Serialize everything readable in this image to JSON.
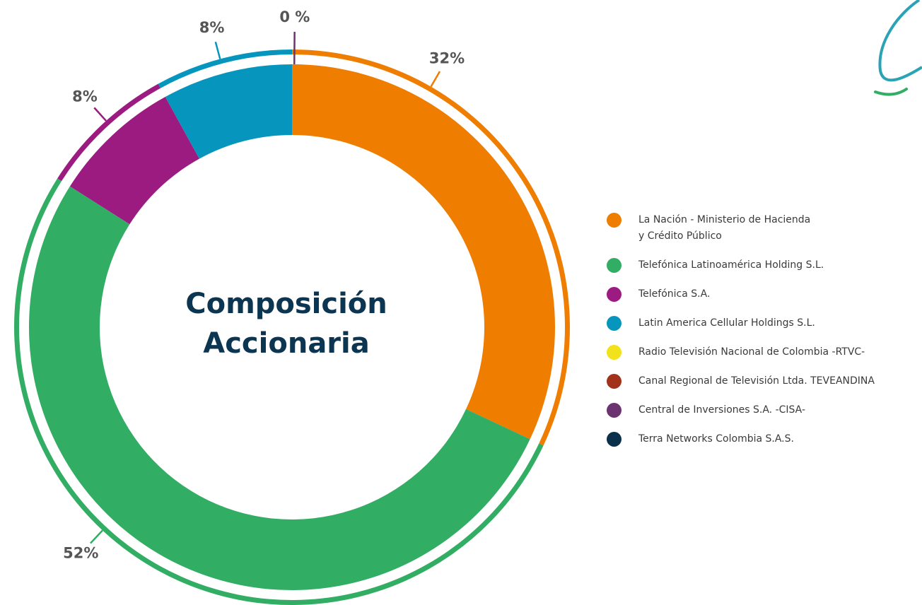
{
  "chart_data": {
    "type": "donut",
    "title": [
      "Composición",
      "Accionaria"
    ],
    "categories": [
      "La Nación - Ministerio de Hacienda\ny Crédito Público",
      "Telefónica Latinoamérica Holding S.L.",
      "Telefónica S.A.",
      "Latin America Cellular Holdings S.L.",
      "Radio Televisión Nacional de Colombia -RTVC-",
      "Canal Regional de Televisión Ltda. TEVEANDINA",
      "Central de Inversiones S.A. -CISA-",
      "Terra Networks Colombia S.A.S."
    ],
    "values": [
      32,
      52,
      8,
      8,
      0,
      0,
      0,
      0
    ],
    "value_labels": [
      "32%",
      "52%",
      "8%",
      "8%",
      null,
      null,
      "0 %",
      null
    ],
    "colors": [
      "#ef7d00",
      "#32ad64",
      "#9b1b81",
      "#0696bd",
      "#f2e21c",
      "#a3321a",
      "#6b3370",
      "#0b3049"
    ],
    "legend": "right"
  }
}
